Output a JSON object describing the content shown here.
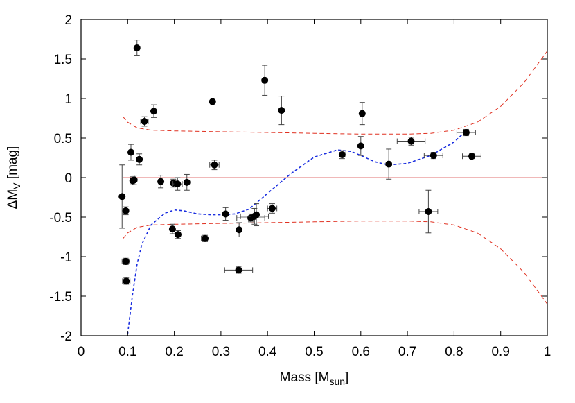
{
  "chart_data": {
    "type": "scatter",
    "title": "",
    "xlabel": {
      "main": "Mass [M",
      "sub": "sun",
      "end": "]"
    },
    "ylabel": {
      "main": "ΔM",
      "sub": "V",
      "end": " [mag]"
    },
    "xlim": [
      0,
      1
    ],
    "ylim": [
      -2,
      2
    ],
    "xticks": [
      0,
      0.1,
      0.2,
      0.3,
      0.4,
      0.5,
      0.6,
      0.7,
      0.8,
      0.9,
      1
    ],
    "xtick_labels": [
      "0",
      "0.1",
      "0.2",
      "0.3",
      "0.4",
      "0.5",
      "0.6",
      "0.7",
      "0.8",
      "0.9",
      "1"
    ],
    "yticks": [
      2,
      1.5,
      1,
      0.5,
      0,
      -0.5,
      -1,
      -1.5,
      -2
    ],
    "ytick_labels": [
      "2",
      "1.5",
      "1",
      "0.5",
      "0",
      "-0.5",
      "-1",
      "-1.5",
      "-2"
    ],
    "grid": false,
    "colors": {
      "points": "#000000",
      "zero_line": "#e07070",
      "envelope": "#e03020",
      "fit": "#1a2ee0"
    },
    "points": [
      {
        "x": 0.088,
        "y": -0.24,
        "xerr": 0,
        "yerr": 0.4
      },
      {
        "x": 0.096,
        "y": -0.42,
        "xerr": 0,
        "yerr": 0.05
      },
      {
        "x": 0.096,
        "y": -1.06,
        "xerr": 0.008,
        "yerr": 0.04
      },
      {
        "x": 0.097,
        "y": -1.31,
        "xerr": 0.008,
        "yerr": 0.04
      },
      {
        "x": 0.107,
        "y": 0.32,
        "xerr": 0,
        "yerr": 0.1
      },
      {
        "x": 0.111,
        "y": -0.04,
        "xerr": 0,
        "yerr": 0.05
      },
      {
        "x": 0.114,
        "y": -0.03,
        "xerr": 0,
        "yerr": 0.06
      },
      {
        "x": 0.12,
        "y": 1.64,
        "xerr": 0,
        "yerr": 0.1
      },
      {
        "x": 0.125,
        "y": 0.23,
        "xerr": 0,
        "yerr": 0.07
      },
      {
        "x": 0.136,
        "y": 0.71,
        "xerr": 0.008,
        "yerr": 0.06
      },
      {
        "x": 0.156,
        "y": 0.84,
        "xerr": 0,
        "yerr": 0.08
      },
      {
        "x": 0.171,
        "y": -0.05,
        "xerr": 0,
        "yerr": 0.08
      },
      {
        "x": 0.196,
        "y": -0.65,
        "xerr": 0,
        "yerr": 0.06
      },
      {
        "x": 0.198,
        "y": -0.07,
        "xerr": 0,
        "yerr": 0.05
      },
      {
        "x": 0.207,
        "y": -0.08,
        "xerr": 0.01,
        "yerr": 0.08
      },
      {
        "x": 0.208,
        "y": -0.72,
        "xerr": 0,
        "yerr": 0.05
      },
      {
        "x": 0.227,
        "y": -0.06,
        "xerr": 0,
        "yerr": 0.1
      },
      {
        "x": 0.266,
        "y": -0.77,
        "xerr": 0.008,
        "yerr": 0.04
      },
      {
        "x": 0.282,
        "y": 0.96,
        "xerr": 0,
        "yerr": 0
      },
      {
        "x": 0.286,
        "y": 0.16,
        "xerr": 0.01,
        "yerr": 0.06
      },
      {
        "x": 0.31,
        "y": -0.46,
        "xerr": 0,
        "yerr": 0.08
      },
      {
        "x": 0.338,
        "y": -1.17,
        "xerr": 0.03,
        "yerr": 0.04
      },
      {
        "x": 0.339,
        "y": -0.66,
        "xerr": 0,
        "yerr": 0.09
      },
      {
        "x": 0.364,
        "y": -0.51,
        "xerr": 0.03,
        "yerr": 0.05
      },
      {
        "x": 0.372,
        "y": -0.49,
        "xerr": 0.03,
        "yerr": 0.1
      },
      {
        "x": 0.376,
        "y": -0.47,
        "xerr": 0,
        "yerr": 0.14
      },
      {
        "x": 0.394,
        "y": 1.23,
        "xerr": 0,
        "yerr": 0.19
      },
      {
        "x": 0.41,
        "y": -0.39,
        "xerr": 0.01,
        "yerr": 0.06
      },
      {
        "x": 0.43,
        "y": 0.85,
        "xerr": 0,
        "yerr": 0.18
      },
      {
        "x": 0.56,
        "y": 0.29,
        "xerr": 0.006,
        "yerr": 0.05
      },
      {
        "x": 0.6,
        "y": 0.4,
        "xerr": 0,
        "yerr": 0.12
      },
      {
        "x": 0.603,
        "y": 0.81,
        "xerr": 0,
        "yerr": 0.14
      },
      {
        "x": 0.66,
        "y": 0.17,
        "xerr": 0,
        "yerr": 0.19
      },
      {
        "x": 0.708,
        "y": 0.46,
        "xerr": 0.03,
        "yerr": 0.05
      },
      {
        "x": 0.745,
        "y": -0.43,
        "xerr": 0.02,
        "yerr": 0.27
      },
      {
        "x": 0.756,
        "y": 0.28,
        "xerr": 0.02,
        "yerr": 0.04
      },
      {
        "x": 0.826,
        "y": 0.57,
        "xerr": 0.02,
        "yerr": 0.04
      },
      {
        "x": 0.838,
        "y": 0.27,
        "xerr": 0.02,
        "yerr": 0.03
      }
    ],
    "lines": [
      {
        "style": "solid",
        "color": "zero_line",
        "x": [
          0.09,
          1
        ],
        "y": [
          0,
          0
        ]
      },
      {
        "style": "dashed",
        "color": "envelope",
        "x": [
          0.09,
          0.1,
          0.12,
          0.15,
          0.2,
          0.3,
          0.4,
          0.5,
          0.6,
          0.7,
          0.75,
          0.8,
          0.85,
          0.9,
          0.95,
          1.0
        ],
        "y": [
          0.77,
          0.7,
          0.63,
          0.6,
          0.59,
          0.58,
          0.57,
          0.56,
          0.55,
          0.55,
          0.56,
          0.6,
          0.7,
          0.9,
          1.2,
          1.6
        ]
      },
      {
        "style": "dashed",
        "color": "envelope",
        "x": [
          0.09,
          0.1,
          0.12,
          0.15,
          0.2,
          0.3,
          0.4,
          0.5,
          0.6,
          0.7,
          0.75,
          0.8,
          0.85,
          0.9,
          0.95,
          1.0
        ],
        "y": [
          -0.77,
          -0.7,
          -0.63,
          -0.6,
          -0.59,
          -0.58,
          -0.57,
          -0.56,
          -0.55,
          -0.55,
          -0.56,
          -0.6,
          -0.7,
          -0.9,
          -1.2,
          -1.6
        ]
      },
      {
        "style": "dashed",
        "color": "fit",
        "x": [
          0.1,
          0.11,
          0.12,
          0.13,
          0.15,
          0.18,
          0.2,
          0.22,
          0.25,
          0.28,
          0.3,
          0.33,
          0.36,
          0.4,
          0.45,
          0.5,
          0.55,
          0.58,
          0.6,
          0.63,
          0.66,
          0.7,
          0.75,
          0.8,
          0.82
        ],
        "y": [
          -1.98,
          -1.5,
          -1.1,
          -0.85,
          -0.6,
          -0.45,
          -0.41,
          -0.42,
          -0.46,
          -0.47,
          -0.47,
          -0.46,
          -0.4,
          -0.2,
          0.05,
          0.26,
          0.35,
          0.33,
          0.28,
          0.2,
          0.16,
          0.18,
          0.28,
          0.45,
          0.56
        ]
      }
    ]
  }
}
